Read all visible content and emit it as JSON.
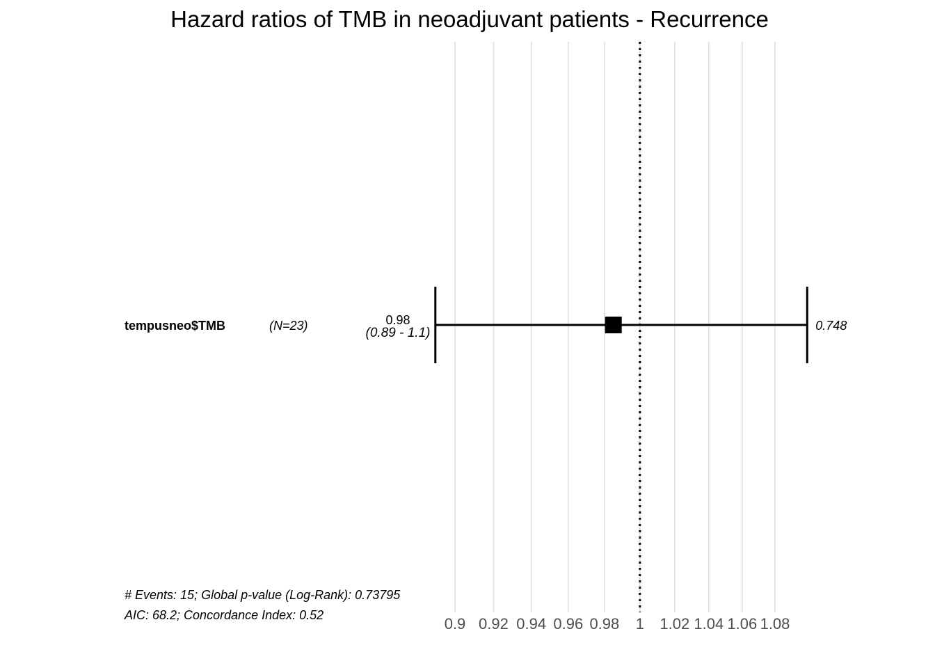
{
  "chart_data": {
    "type": "forest",
    "title": "Hazard ratios of TMB in neoadjuvant patients - Recurrence",
    "xlim": [
      0.89,
      1.1
    ],
    "reference_line": 1,
    "x_ticks": [
      0.9,
      0.92,
      0.94,
      0.96,
      0.98,
      1,
      1.02,
      1.04,
      1.06,
      1.08
    ],
    "x_tick_labels": [
      "0.9",
      "0.92",
      "0.94",
      "0.96",
      "0.98",
      "1",
      "1.02",
      "1.04",
      "1.06",
      "1.08"
    ],
    "rows": [
      {
        "variable": "tempusneo$TMB",
        "n_label": "(N=23)",
        "estimate": 0.985,
        "lower": 0.89,
        "upper": 1.1,
        "estimate_label": "0.98",
        "ci_label": "(0.89 - 1.1)",
        "p_value": "0.748"
      }
    ],
    "footer": [
      "# Events: 15; Global p-value (Log-Rank): 0.73795",
      "AIC: 68.2; Concordance Index: 0.52"
    ]
  }
}
